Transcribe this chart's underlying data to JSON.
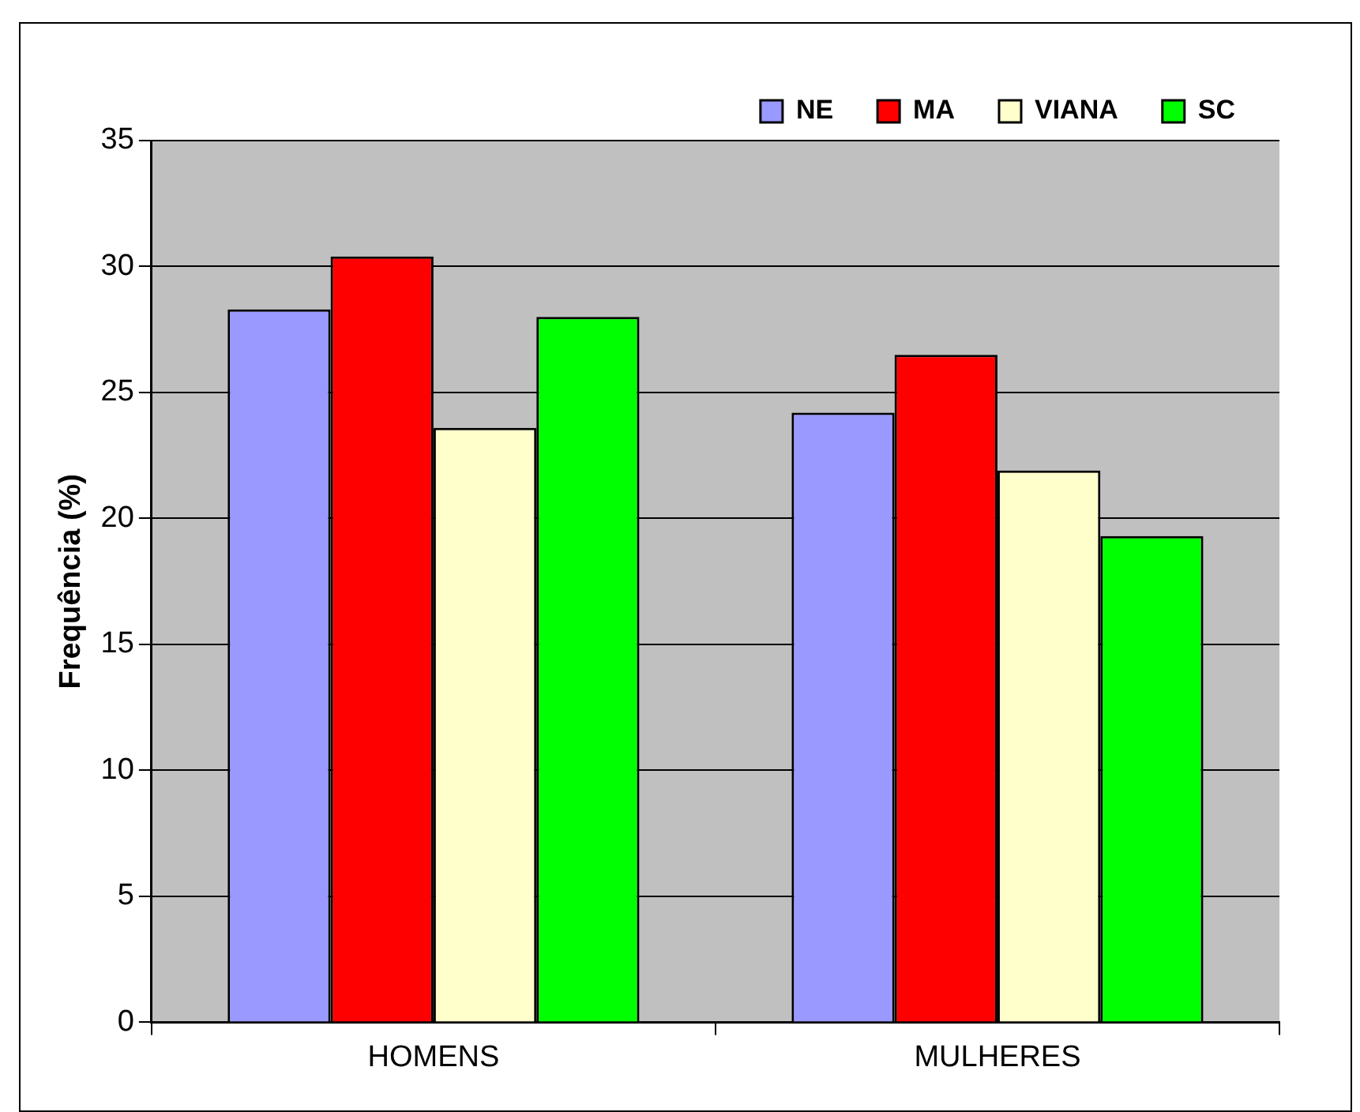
{
  "chart_data": {
    "type": "bar",
    "ylabel": "Frequência (%)",
    "categories": [
      "HOMENS",
      "MULHERES"
    ],
    "series": [
      {
        "name": "NE",
        "color": "#9999ff",
        "values": [
          28.3,
          24.2
        ]
      },
      {
        "name": "MA",
        "color": "#ff0000",
        "values": [
          30.4,
          26.5
        ]
      },
      {
        "name": "VIANA",
        "color": "#ffffcc",
        "values": [
          23.6,
          21.9
        ]
      },
      {
        "name": "SC",
        "color": "#00ff00",
        "values": [
          28.0,
          19.3
        ]
      }
    ],
    "ylim": [
      0,
      35
    ],
    "yticks": [
      0,
      5,
      10,
      15,
      20,
      25,
      30,
      35
    ],
    "grid": "y",
    "legend": "top right"
  }
}
